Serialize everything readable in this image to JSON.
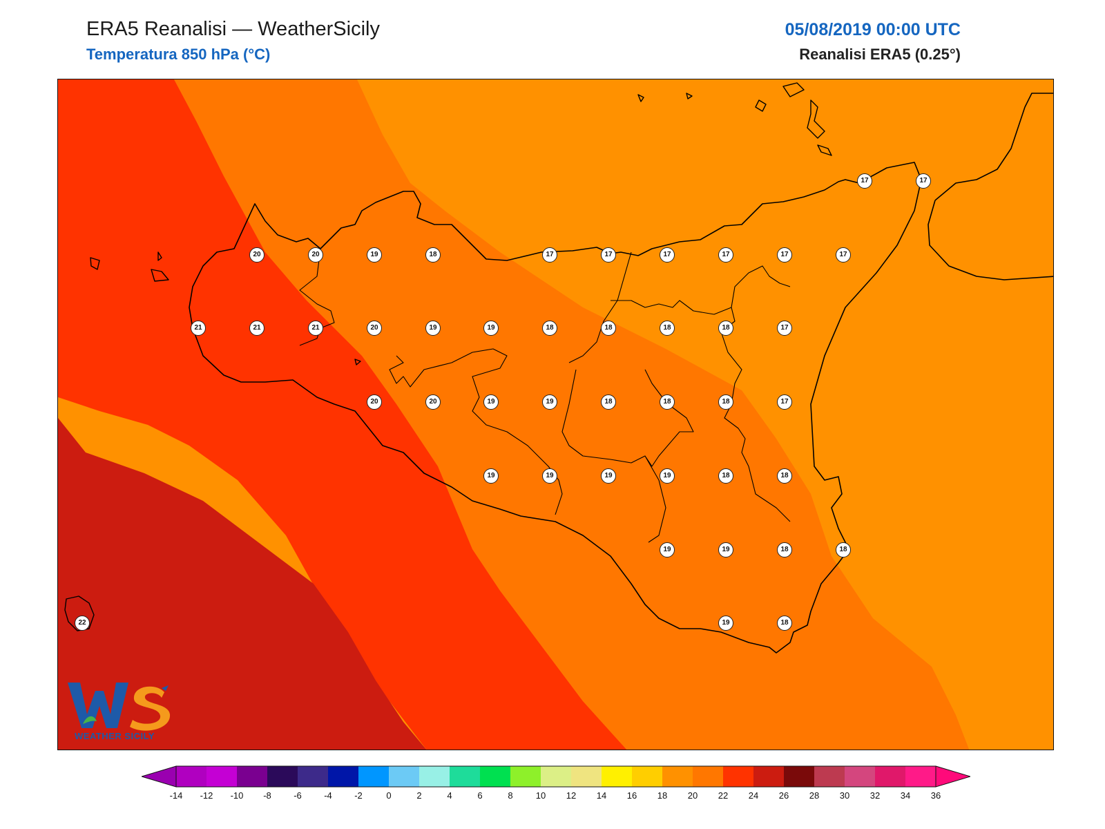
{
  "header": {
    "title": "ERA5 Reanalisi — WeatherSicily",
    "subtitle": "Temperatura 850 hPa (°C)",
    "datetime": "05/08/2019 00:00 UTC",
    "source": "Reanalisi ERA5 (0.25°)"
  },
  "map": {
    "region": "Sicily",
    "field_colors": {
      "16_18": "#ff9100",
      "18_20": "#ff7700",
      "20_22": "#ff3300",
      "22_24": "#cc1c10"
    },
    "stations": [
      {
        "value": "17",
        "lat_lon_label": "n1"
      },
      {
        "value": "17",
        "lat_lon_label": "n2"
      },
      {
        "value": "20"
      },
      {
        "value": "20"
      },
      {
        "value": "19"
      },
      {
        "value": "18"
      },
      {
        "value": "17"
      },
      {
        "value": "17"
      },
      {
        "value": "17"
      },
      {
        "value": "17"
      },
      {
        "value": "17"
      },
      {
        "value": "17"
      },
      {
        "value": "21"
      },
      {
        "value": "21"
      },
      {
        "value": "21"
      },
      {
        "value": "20"
      },
      {
        "value": "19"
      },
      {
        "value": "19"
      },
      {
        "value": "18"
      },
      {
        "value": "18"
      },
      {
        "value": "18"
      },
      {
        "value": "18"
      },
      {
        "value": "17"
      },
      {
        "value": "20"
      },
      {
        "value": "20"
      },
      {
        "value": "19"
      },
      {
        "value": "19"
      },
      {
        "value": "18"
      },
      {
        "value": "18"
      },
      {
        "value": "18"
      },
      {
        "value": "17"
      },
      {
        "value": "19"
      },
      {
        "value": "19"
      },
      {
        "value": "19"
      },
      {
        "value": "19"
      },
      {
        "value": "18"
      },
      {
        "value": "18"
      },
      {
        "value": "19"
      },
      {
        "value": "19"
      },
      {
        "value": "18"
      },
      {
        "value": "18"
      },
      {
        "value": "22"
      },
      {
        "value": "19"
      },
      {
        "value": "18"
      }
    ]
  },
  "logo": {
    "text": "WEATHER SICILY"
  },
  "colorbar": {
    "ticks": [
      "-14",
      "-12",
      "-10",
      "-8",
      "-6",
      "-4",
      "-2",
      "0",
      "2",
      "4",
      "6",
      "8",
      "10",
      "12",
      "14",
      "16",
      "18",
      "20",
      "22",
      "24",
      "26",
      "28",
      "30",
      "32",
      "34",
      "36"
    ],
    "colors": [
      "#b000c0",
      "#c400d4",
      "#7a0090",
      "#2b0a5a",
      "#3d2a8a",
      "#0016a8",
      "#0096ff",
      "#6ccaf5",
      "#98f0e6",
      "#1edc9a",
      "#00e050",
      "#8ef02a",
      "#dcef86",
      "#efe480",
      "#fff000",
      "#ffce00",
      "#ff9100",
      "#ff7700",
      "#ff3300",
      "#cc1c10",
      "#7a0a0a",
      "#bd3a50",
      "#d4467e",
      "#e0186a",
      "#ff1a88"
    ],
    "low_extend_color": "#9a00b0",
    "high_extend_color": "#ff0a7a"
  }
}
